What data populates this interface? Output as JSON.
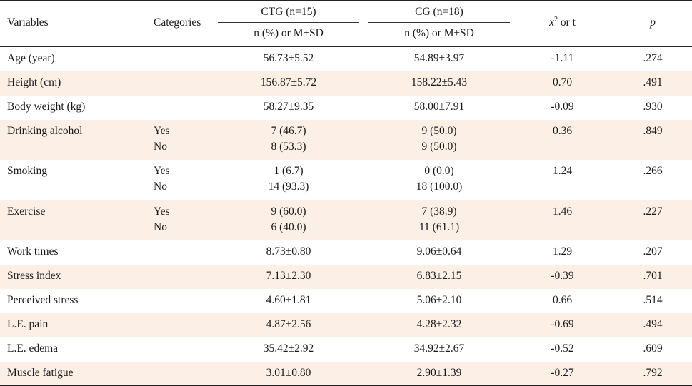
{
  "header": {
    "variables": "Variables",
    "categories": "Categories",
    "ctg_group": "CTG (n=15)",
    "cg_group": "CG (n=18)",
    "ctg_sub": "n (%) or M±SD",
    "cg_sub": "n (%) or M±SD",
    "stat_x": "x",
    "stat_sup": "2",
    "stat_rest": " or t",
    "p": "p"
  },
  "rows": [
    {
      "var": "Age (year)",
      "cat1": "",
      "cat2": "",
      "ctg1": "56.73±5.52",
      "ctg2": "",
      "cg1": "54.89±3.97",
      "cg2": "",
      "stat": "-1.11",
      "p": ".274"
    },
    {
      "var": "Height (cm)",
      "cat1": "",
      "cat2": "",
      "ctg1": "156.87±5.72",
      "ctg2": "",
      "cg1": "158.22±5.43",
      "cg2": "",
      "stat": "0.70",
      "p": ".491"
    },
    {
      "var": "Body weight (kg)",
      "cat1": "",
      "cat2": "",
      "ctg1": "58.27±9.35",
      "ctg2": "",
      "cg1": "58.00±7.91",
      "cg2": "",
      "stat": "-0.09",
      "p": ".930"
    },
    {
      "var": "Drinking alcohol",
      "cat1": "Yes",
      "cat2": "No",
      "ctg1": "7 (46.7)",
      "ctg2": "8 (53.3)",
      "cg1": "9 (50.0)",
      "cg2": "9 (50.0)",
      "stat": "0.36",
      "p": ".849"
    },
    {
      "var": "Smoking",
      "cat1": "Yes",
      "cat2": "No",
      "ctg1": "1 (6.7)",
      "ctg2": "14 (93.3)",
      "cg1": "0 (0.0)",
      "cg2": "18 (100.0)",
      "stat": "1.24",
      "p": ".266"
    },
    {
      "var": "Exercise",
      "cat1": "Yes",
      "cat2": "No",
      "ctg1": "9 (60.0)",
      "ctg2": "6 (40.0)",
      "cg1": "7 (38.9)",
      "cg2": "11 (61.1)",
      "stat": "1.46",
      "p": ".227"
    },
    {
      "var": "Work times",
      "cat1": "",
      "cat2": "",
      "ctg1": "8.73±0.80",
      "ctg2": "",
      "cg1": "9.06±0.64",
      "cg2": "",
      "stat": "1.29",
      "p": ".207"
    },
    {
      "var": "Stress index",
      "cat1": "",
      "cat2": "",
      "ctg1": "7.13±2.30",
      "ctg2": "",
      "cg1": "6.83±2.15",
      "cg2": "",
      "stat": "-0.39",
      "p": ".701"
    },
    {
      "var": "Perceived stress",
      "cat1": "",
      "cat2": "",
      "ctg1": "4.60±1.81",
      "ctg2": "",
      "cg1": "5.06±2.10",
      "cg2": "",
      "stat": "0.66",
      "p": ".514"
    },
    {
      "var": "L.E. pain",
      "cat1": "",
      "cat2": "",
      "ctg1": "4.87±2.56",
      "ctg2": "",
      "cg1": "4.28±2.32",
      "cg2": "",
      "stat": "-0.69",
      "p": ".494"
    },
    {
      "var": "L.E. edema",
      "cat1": "",
      "cat2": "",
      "ctg1": "35.42±2.92",
      "ctg2": "",
      "cg1": "34.92±2.67",
      "cg2": "",
      "stat": "-0.52",
      "p": ".609"
    },
    {
      "var": "Muscle fatigue",
      "cat1": "",
      "cat2": "",
      "ctg1": "3.01±0.80",
      "ctg2": "",
      "cg1": "2.90±1.39",
      "cg2": "",
      "stat": "-0.27",
      "p": ".792"
    }
  ]
}
